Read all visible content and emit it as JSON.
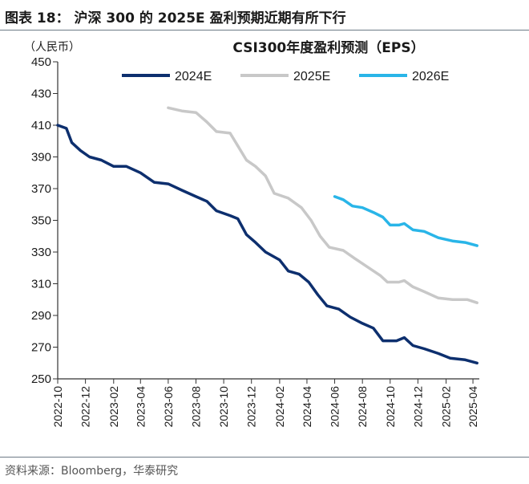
{
  "header": {
    "title": "图表 18：  沪深 300 的 2025E 盈利预期近期有所下行"
  },
  "source": "资料来源：Bloomberg，华泰研究",
  "chart_data": {
    "type": "line",
    "title": "CSI300年度盈利预测（EPS）",
    "ylabel": "（人民币）",
    "xlabel": "",
    "ylim": [
      250,
      450
    ],
    "yticks": [
      250,
      270,
      290,
      310,
      330,
      350,
      370,
      390,
      410,
      430,
      450
    ],
    "x_range": [
      "2022-10-01",
      "2025-04-15"
    ],
    "x_tick_labels": [
      "2022-10",
      "2022-12",
      "2023-02",
      "2023-04",
      "2023-06",
      "2023-08",
      "2023-10",
      "2023-12",
      "2024-02",
      "2024-04",
      "2024-06",
      "2024-08",
      "2024-10",
      "2024-12",
      "2025-02",
      "2025-04"
    ],
    "grid": false,
    "legend_position": "top",
    "series": [
      {
        "name": "2024E",
        "color": "#0d2f6e",
        "points": [
          [
            "2022-10-01",
            410
          ],
          [
            "2022-10-20",
            408
          ],
          [
            "2022-11-01",
            399
          ],
          [
            "2022-11-20",
            394
          ],
          [
            "2022-12-10",
            390
          ],
          [
            "2023-01-05",
            388
          ],
          [
            "2023-02-01",
            384
          ],
          [
            "2023-03-01",
            384
          ],
          [
            "2023-04-01",
            380
          ],
          [
            "2023-05-01",
            374
          ],
          [
            "2023-06-01",
            373
          ],
          [
            "2023-07-01",
            369
          ],
          [
            "2023-08-01",
            365
          ],
          [
            "2023-08-25",
            362
          ],
          [
            "2023-09-15",
            356
          ],
          [
            "2023-10-15",
            353
          ],
          [
            "2023-11-01",
            351
          ],
          [
            "2023-11-20",
            341
          ],
          [
            "2023-12-10",
            336
          ],
          [
            "2024-01-01",
            330
          ],
          [
            "2024-02-01",
            325
          ],
          [
            "2024-02-20",
            318
          ],
          [
            "2024-03-15",
            316
          ],
          [
            "2024-04-05",
            311
          ],
          [
            "2024-04-25",
            303
          ],
          [
            "2024-05-15",
            296
          ],
          [
            "2024-06-10",
            294
          ],
          [
            "2024-07-05",
            289
          ],
          [
            "2024-08-01",
            285
          ],
          [
            "2024-08-25",
            282
          ],
          [
            "2024-09-15",
            274
          ],
          [
            "2024-10-15",
            274
          ],
          [
            "2024-11-01",
            276
          ],
          [
            "2024-11-20",
            271
          ],
          [
            "2024-12-15",
            269
          ],
          [
            "2025-01-15",
            266
          ],
          [
            "2025-02-10",
            263
          ],
          [
            "2025-03-15",
            262
          ],
          [
            "2025-04-10",
            260
          ]
        ]
      },
      {
        "name": "2025E",
        "color": "#c8c8c8",
        "points": [
          [
            "2023-06-01",
            421
          ],
          [
            "2023-07-01",
            419
          ],
          [
            "2023-08-01",
            418
          ],
          [
            "2023-08-25",
            412
          ],
          [
            "2023-09-15",
            406
          ],
          [
            "2023-10-15",
            405
          ],
          [
            "2023-11-01",
            397
          ],
          [
            "2023-11-20",
            388
          ],
          [
            "2023-12-10",
            384
          ],
          [
            "2024-01-01",
            378
          ],
          [
            "2024-01-20",
            367
          ],
          [
            "2024-02-20",
            364
          ],
          [
            "2024-03-20",
            358
          ],
          [
            "2024-04-10",
            350
          ],
          [
            "2024-04-30",
            340
          ],
          [
            "2024-05-20",
            333
          ],
          [
            "2024-06-20",
            331
          ],
          [
            "2024-07-15",
            326
          ],
          [
            "2024-08-10",
            321
          ],
          [
            "2024-09-10",
            315
          ],
          [
            "2024-09-25",
            311
          ],
          [
            "2024-10-20",
            311
          ],
          [
            "2024-11-01",
            312
          ],
          [
            "2024-11-20",
            308
          ],
          [
            "2024-12-15",
            305
          ],
          [
            "2025-01-15",
            301
          ],
          [
            "2025-02-15",
            300
          ],
          [
            "2025-03-20",
            300
          ],
          [
            "2025-04-10",
            298
          ]
        ]
      },
      {
        "name": "2026E",
        "color": "#29b5e8",
        "points": [
          [
            "2024-06-01",
            365
          ],
          [
            "2024-06-20",
            363
          ],
          [
            "2024-07-10",
            359
          ],
          [
            "2024-08-01",
            358
          ],
          [
            "2024-08-25",
            355
          ],
          [
            "2024-09-15",
            352
          ],
          [
            "2024-10-01",
            347
          ],
          [
            "2024-10-20",
            347
          ],
          [
            "2024-11-01",
            348
          ],
          [
            "2024-11-20",
            344
          ],
          [
            "2024-12-15",
            343
          ],
          [
            "2025-01-15",
            339
          ],
          [
            "2025-02-15",
            337
          ],
          [
            "2025-03-15",
            336
          ],
          [
            "2025-04-10",
            334
          ]
        ]
      }
    ]
  }
}
